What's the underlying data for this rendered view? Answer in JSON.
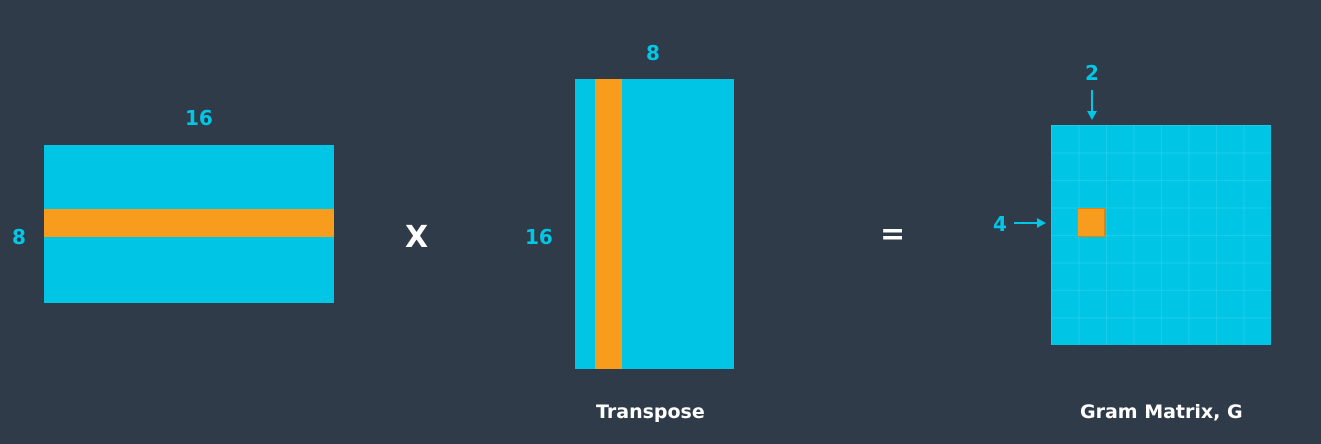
{
  "matrix_a": {
    "width_label": "16",
    "height_label": "8"
  },
  "operator_multiply": "X",
  "matrix_b": {
    "width_label": "8",
    "height_label": "16",
    "caption": "Transpose"
  },
  "operator_equals": "=",
  "gram_matrix": {
    "column_label": "2",
    "row_label": "4",
    "caption": "Gram Matrix, G"
  },
  "colors": {
    "background": "#2f3b48",
    "matrix_fill": "#00c5e5",
    "highlight": "#f79c1d",
    "label": "#02c6e6",
    "operator": "#ffffff"
  }
}
